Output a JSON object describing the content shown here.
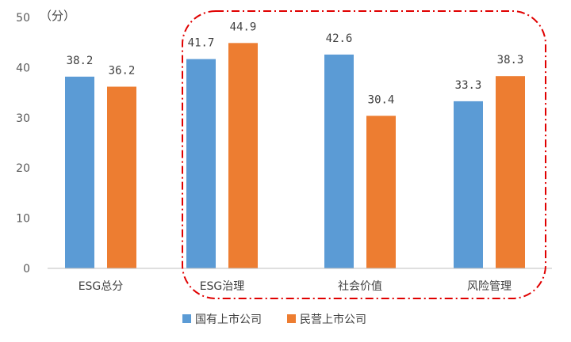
{
  "colors": {
    "state": "#5B9BD5",
    "private": "#ED7D31",
    "highlight": "#E00000",
    "axis": "#BFBFBF"
  },
  "chart_data": {
    "type": "bar",
    "unit_label": "（分）",
    "categories": [
      "ESG总分",
      "ESG治理",
      "社会价值",
      "风险管理"
    ],
    "series": [
      {
        "name": "国有上市公司",
        "values": [
          38.2,
          41.7,
          42.6,
          33.3
        ]
      },
      {
        "name": "民营上市公司",
        "values": [
          36.2,
          44.9,
          30.4,
          38.3
        ]
      }
    ],
    "data_labels": [
      [
        "38.2",
        "41.7",
        "42.6",
        "33.3"
      ],
      [
        "36.2",
        "44.9",
        "30.4",
        "38.3"
      ]
    ],
    "yticks": [
      "0",
      "10",
      "20",
      "30",
      "40",
      "50"
    ],
    "ylim": [
      0,
      50
    ],
    "grid": false,
    "legend_position": "bottom",
    "highlight_box": "dash-dot rounded outline around ESG治理, 社会价值, 风险管理"
  }
}
